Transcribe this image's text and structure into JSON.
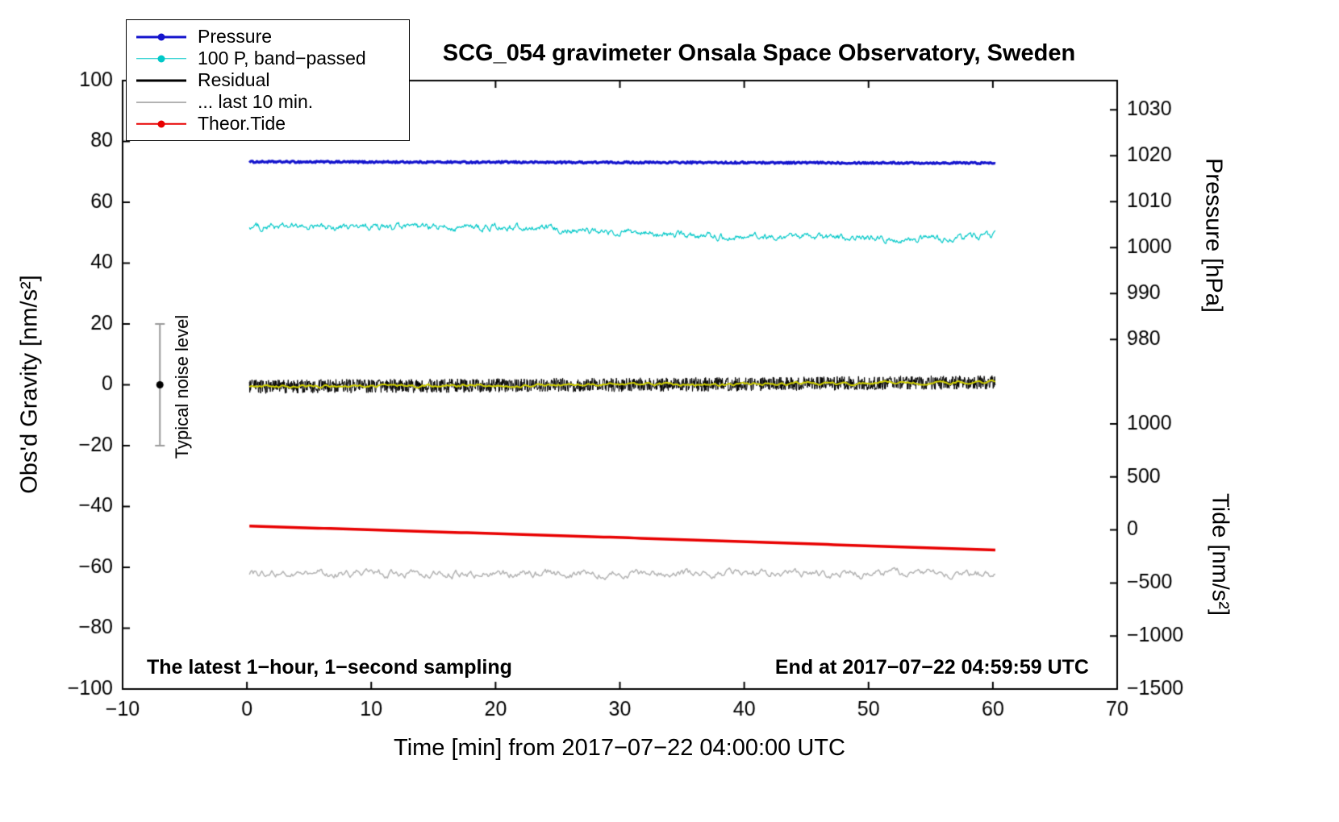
{
  "chart_data": {
    "type": "line",
    "title": "SCG_054 gravimeter Onsala Space Observatory, Sweden",
    "xlabel": "Time [min] from 2017−07−22 04:00:00 UTC",
    "ylabel": "Obs'd Gravity [nm/s²]",
    "xlim": [
      -10,
      70
    ],
    "ylim": [
      -100,
      100
    ],
    "xticks": [
      -10,
      0,
      10,
      20,
      30,
      40,
      50,
      60,
      70
    ],
    "yticks": [
      -100,
      -80,
      -60,
      -40,
      -20,
      0,
      20,
      40,
      60,
      80,
      100
    ],
    "grid": false,
    "legend_position": "top-left",
    "pressure_axis": {
      "label": "Pressure [hPa]",
      "ticks": [
        1030,
        1020,
        1010,
        1000,
        990,
        980
      ],
      "gravity_at_1000": 45.1,
      "gravity_per_hpa": 1.51
    },
    "tide_axis": {
      "label": "Tide [nm/s²]",
      "ticks": [
        1000,
        500,
        0,
        -500,
        -1000,
        -1500
      ],
      "gravity_at_0": -47.7,
      "gravity_per_unit": 0.034867
    },
    "legend": {
      "items": [
        {
          "label": "Pressure",
          "color": "#1414cd",
          "dot": true,
          "lw": 3
        },
        {
          "label": "100 P, band−passed",
          "color": "#00c8c8",
          "dot": true,
          "lw": 1.5
        },
        {
          "label": "Residual",
          "color": "#000000",
          "dot": false,
          "lw": 3
        },
        {
          "label": "... last 10 min.",
          "color": "#b3b3b3",
          "dot": false,
          "lw": 2
        },
        {
          "label": "Theor.Tide",
          "color": "#e80000",
          "dot": true,
          "lw": 2.5
        }
      ]
    },
    "series_x_range": [
      0.2,
      60.2
    ],
    "series": [
      {
        "name": "Pressure",
        "color": "#1414cd",
        "lw": 3.2,
        "n": 700,
        "noise": 0.3,
        "mode": "white",
        "baseline": [
          [
            0,
            73.3
          ],
          [
            30,
            73.1
          ],
          [
            60,
            72.9
          ]
        ]
      },
      {
        "name": "100 P, band−passed",
        "color": "#00c8c8",
        "lw": 1.2,
        "n": 900,
        "noise": 1.3,
        "mode": "walk",
        "baseline": [
          [
            0,
            52.0
          ],
          [
            12,
            51.6
          ],
          [
            22,
            51.8
          ],
          [
            30,
            50.0
          ],
          [
            38,
            48.8
          ],
          [
            50,
            48.3
          ],
          [
            54,
            47.8
          ],
          [
            60,
            48.8
          ]
        ]
      },
      {
        "name": "Residual",
        "color": "#000000",
        "lw": 1,
        "n": 2000,
        "noise": 2.3,
        "mode": "white",
        "baseline": [
          [
            0,
            -0.6
          ],
          [
            20,
            -0.2
          ],
          [
            40,
            0.2
          ],
          [
            60,
            0.9
          ]
        ]
      },
      {
        "name": "Residual low−pass",
        "color": "#cfcf00",
        "lw": 2,
        "n": 500,
        "noise": 0.55,
        "mode": "walk",
        "baseline": [
          [
            0,
            -0.6
          ],
          [
            20,
            -0.2
          ],
          [
            40,
            0.2
          ],
          [
            60,
            0.9
          ]
        ]
      },
      {
        "name": "... last 10 min.",
        "color": "#b3b3b3",
        "lw": 1.5,
        "n": 600,
        "noise": 1.5,
        "mode": "walk",
        "baseline": [
          [
            0,
            -62
          ],
          [
            60,
            -62
          ]
        ]
      },
      {
        "name": "Theor.Tide",
        "color": "#e80000",
        "lw": 3.5,
        "n": 120,
        "noise": 0,
        "mode": "white",
        "baseline": [
          [
            0,
            -46.4
          ],
          [
            30,
            -50.2
          ],
          [
            60,
            -54.3
          ]
        ]
      }
    ],
    "noise_bar": {
      "x": -7,
      "center": 0,
      "half_range": 20,
      "label": "Typical noise level"
    },
    "notes": {
      "sampling": "The latest 1−hour, 1−second sampling",
      "end": "End at 2017−07−22 04:59:59 UTC"
    }
  }
}
